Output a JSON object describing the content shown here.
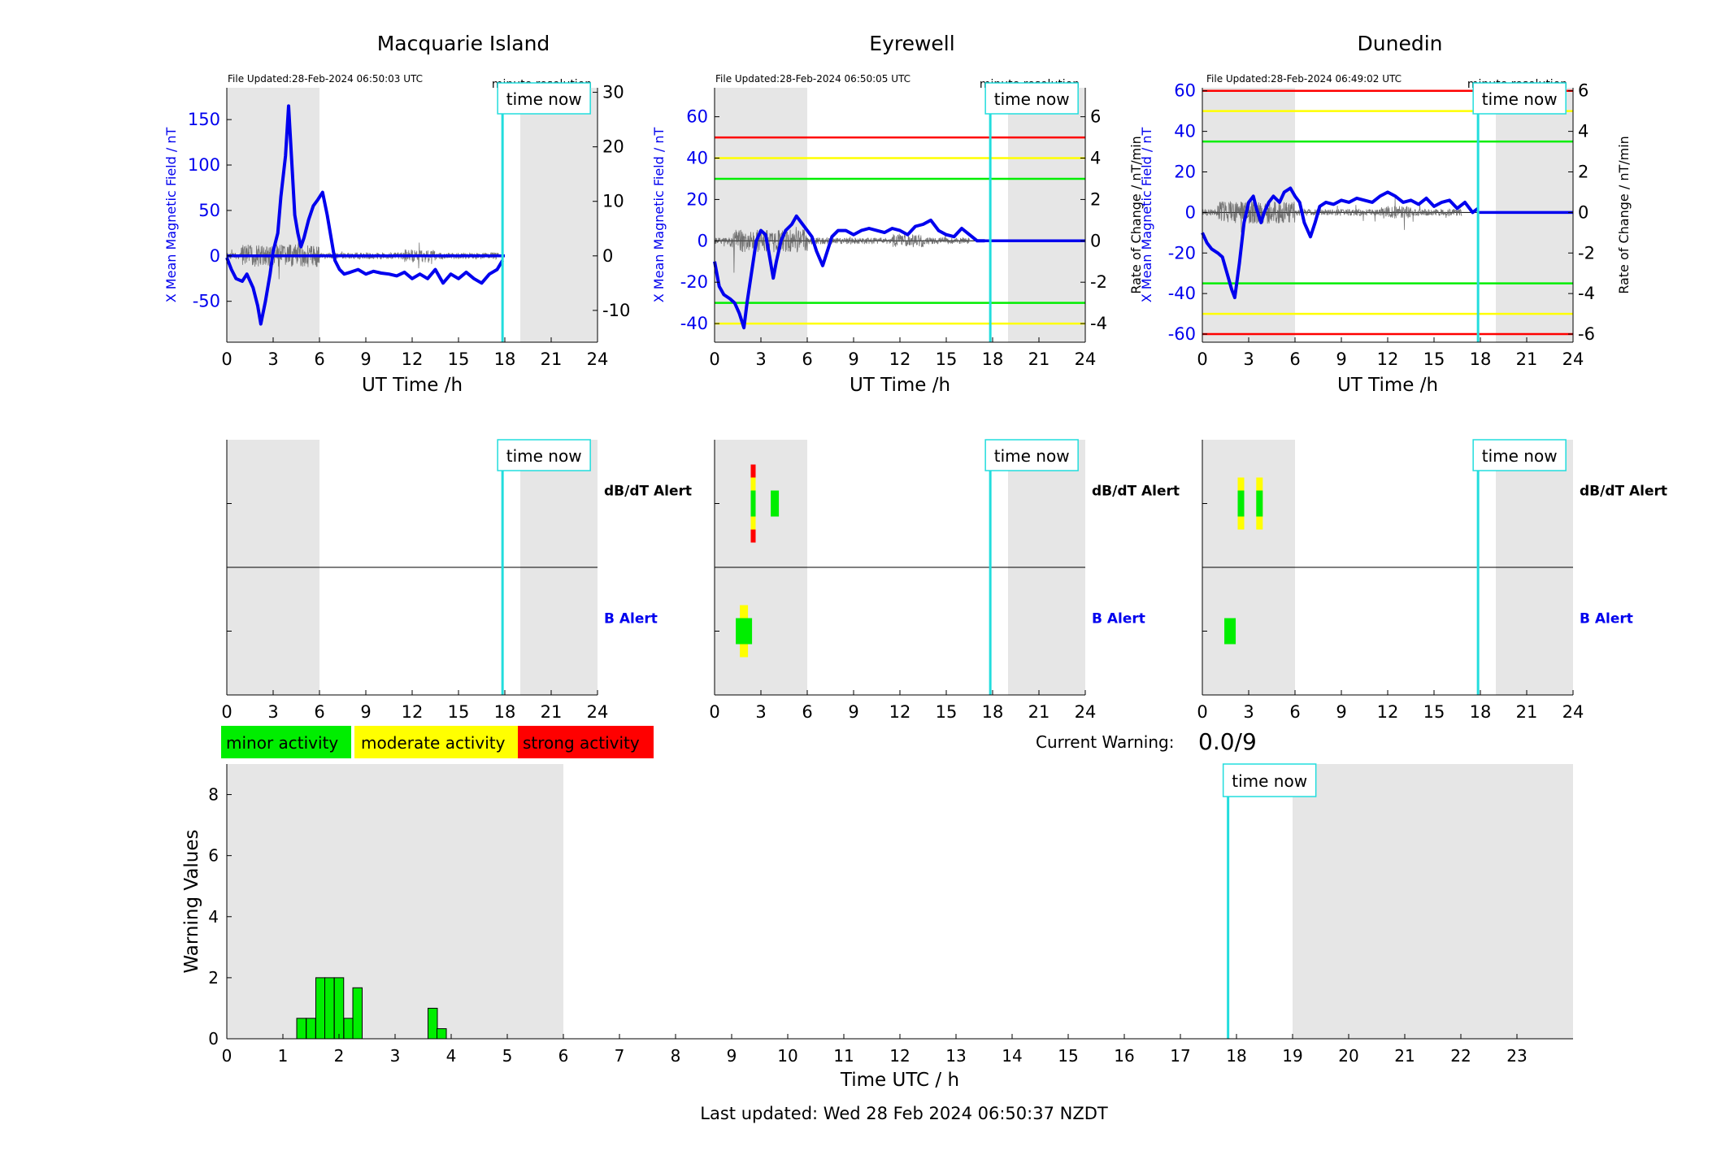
{
  "common": {
    "x_label": "UT Time /h",
    "x_ticks": [
      0,
      3,
      6,
      9,
      12,
      15,
      18,
      21,
      24
    ],
    "time_now_label": "time now",
    "minute_res_label": "minute resolution",
    "alert_dbdt_label": "dB/dT Alert",
    "alert_b_label": "B Alert",
    "now_hour": 17.85,
    "day_shading": [
      [
        0,
        6
      ],
      [
        19,
        24
      ]
    ],
    "colors": {
      "mean": "#0000ee",
      "rate": "#555555",
      "now": "#22dddd",
      "green": "#00ee00",
      "yellow": "#ffff00",
      "red": "#ff0000",
      "shade": "#e6e6e6"
    }
  },
  "legend": {
    "minor": "minor activity",
    "moderate": "moderate activity",
    "strong": "strong activity"
  },
  "current_warning": {
    "label": "Current Warning:",
    "value": "0.0/9"
  },
  "footer": {
    "last_updated": "Last updated: Wed 28 Feb 2024 06:50:37 NZDT"
  },
  "chart_data": [
    {
      "type": "line",
      "title": "Macquarie Island",
      "file_updated": "File Updated:28-Feb-2024 06:50:03 UTC",
      "ylabel": "X Mean Magnetic Field / nT",
      "y2label": "",
      "ylim": [
        -95,
        185
      ],
      "y_ticks": [
        -50,
        0,
        50,
        100,
        150
      ],
      "y2lim": [
        -15.83,
        30.83
      ],
      "y2_ticks": [
        -10,
        0,
        10,
        20,
        30
      ],
      "thresholds": [],
      "series": [
        {
          "x": [
            0,
            0.3,
            0.6,
            1,
            1.3,
            1.7,
            2,
            2.2,
            2.5,
            2.8,
            3,
            3.3,
            3.5,
            3.8,
            4,
            4.2,
            4.4,
            4.6,
            4.8,
            5,
            5.3,
            5.6,
            5.9,
            6.2,
            6.5,
            6.8,
            7,
            7.3,
            7.6,
            8,
            8.5,
            9,
            9.5,
            10,
            10.5,
            11,
            11.5,
            12,
            12.5,
            13,
            13.5,
            14,
            14.5,
            15,
            15.5,
            16,
            16.5,
            17,
            17.5,
            17.85
          ],
          "y": [
            -2,
            -15,
            -25,
            -28,
            -20,
            -35,
            -55,
            -75,
            -50,
            -20,
            5,
            25,
            65,
            110,
            165,
            105,
            45,
            25,
            10,
            20,
            40,
            55,
            62,
            70,
            45,
            15,
            -5,
            -15,
            -20,
            -18,
            -15,
            -20,
            -17,
            -19,
            -20,
            -22,
            -18,
            -25,
            -20,
            -25,
            -15,
            -30,
            -20,
            -25,
            -18,
            -25,
            -30,
            -20,
            -15,
            -5
          ]
        },
        {
          "x": [
            0,
            18
          ],
          "y": [
            0,
            0
          ]
        }
      ],
      "alerts": {
        "dbdt": [],
        "b": []
      }
    },
    {
      "type": "line",
      "title": "Eyrewell",
      "file_updated": "File Updated:28-Feb-2024 06:50:05 UTC",
      "ylabel": "X Mean Magnetic Field / nT",
      "y2label": "Rate of Change / nT/min",
      "ylim": [
        -49,
        74
      ],
      "y_ticks": [
        -40,
        -20,
        0,
        20,
        40,
        60
      ],
      "y2lim": [
        -4.9,
        7.4
      ],
      "y2_ticks": [
        -4,
        -2,
        0,
        2,
        4,
        6
      ],
      "thresholds": [
        {
          "y": 50,
          "color": "red"
        },
        {
          "y": 40,
          "color": "yellow"
        },
        {
          "y": 30,
          "color": "green"
        },
        {
          "y": -30,
          "color": "green"
        },
        {
          "y": -40,
          "color": "yellow"
        }
      ],
      "series": [
        {
          "x": [
            0,
            0.3,
            0.6,
            1,
            1.3,
            1.6,
            1.9,
            2.1,
            2.4,
            2.7,
            3,
            3.3,
            3.5,
            3.8,
            4,
            4.3,
            4.6,
            5,
            5.3,
            5.7,
            6,
            6.3,
            6.6,
            7,
            7.3,
            7.6,
            8,
            8.5,
            9,
            9.5,
            10,
            10.5,
            11,
            11.5,
            12,
            12.5,
            13,
            13.5,
            14,
            14.5,
            15,
            15.5,
            16,
            16.5,
            17,
            17.5
          ],
          "y": [
            -10,
            -22,
            -26,
            -28,
            -30,
            -35,
            -42,
            -30,
            -15,
            0,
            5,
            3,
            -5,
            -18,
            -10,
            0,
            5,
            8,
            12,
            8,
            5,
            2,
            -5,
            -12,
            -5,
            2,
            5,
            5,
            3,
            5,
            6,
            5,
            4,
            6,
            5,
            3,
            7,
            8,
            10,
            5,
            3,
            2,
            6,
            3,
            0,
            0
          ]
        },
        {
          "x": [
            17.5,
            24
          ],
          "y": [
            0,
            0
          ]
        }
      ],
      "alerts": {
        "dbdt": [
          {
            "x": 2.5,
            "from": "red",
            "mid": "yellow",
            "core": "green"
          },
          {
            "x": 3.9,
            "from": "green"
          }
        ],
        "b": [
          {
            "x": 1.9,
            "from": "green",
            "mid": "yellow"
          }
        ]
      }
    },
    {
      "type": "line",
      "title": "Dunedin",
      "file_updated": "File Updated:28-Feb-2024 06:49:02 UTC",
      "ylabel": "X Mean Magnetic Field / nT",
      "y2label": "Rate of Change / nT/min",
      "ylim": [
        -64,
        61.5
      ],
      "y_ticks": [
        -60,
        -40,
        -20,
        0,
        20,
        40,
        60
      ],
      "y2lim": [
        -6.4,
        6.15
      ],
      "y2_ticks": [
        -6,
        -4,
        -2,
        0,
        2,
        4,
        6
      ],
      "thresholds": [
        {
          "y": 60,
          "color": "red"
        },
        {
          "y": 50,
          "color": "yellow"
        },
        {
          "y": 35,
          "color": "green"
        },
        {
          "y": -35,
          "color": "green"
        },
        {
          "y": -50,
          "color": "yellow"
        },
        {
          "y": -60,
          "color": "red"
        }
      ],
      "series": [
        {
          "x": [
            0,
            0.3,
            0.6,
            1,
            1.3,
            1.6,
            1.9,
            2.1,
            2.4,
            2.7,
            3,
            3.3,
            3.5,
            3.8,
            4,
            4.3,
            4.6,
            5,
            5.3,
            5.7,
            6,
            6.3,
            6.6,
            7,
            7.3,
            7.6,
            8,
            8.5,
            9,
            9.5,
            10,
            10.5,
            11,
            11.5,
            12,
            12.5,
            13,
            13.5,
            14,
            14.5,
            15,
            15.5,
            16,
            16.5,
            17,
            17.5,
            17.85
          ],
          "y": [
            -10,
            -15,
            -18,
            -20,
            -22,
            -30,
            -38,
            -42,
            -25,
            -5,
            5,
            8,
            2,
            -5,
            0,
            5,
            8,
            5,
            10,
            12,
            8,
            5,
            -5,
            -12,
            -5,
            3,
            5,
            4,
            6,
            5,
            7,
            6,
            5,
            8,
            10,
            8,
            5,
            6,
            4,
            7,
            3,
            5,
            6,
            2,
            5,
            0,
            2
          ]
        },
        {
          "x": [
            17.85,
            24
          ],
          "y": [
            0,
            0
          ]
        }
      ],
      "alerts": {
        "dbdt": [
          {
            "x": 2.5,
            "from": "yellow",
            "core": "green"
          },
          {
            "x": 3.7,
            "from": "yellow",
            "core": "green"
          }
        ],
        "b": [
          {
            "x": 1.95,
            "from": "green"
          }
        ]
      }
    },
    {
      "type": "bar",
      "title": "",
      "xlabel": "Time UTC / h",
      "ylabel": "Warning Values",
      "xlim": [
        0,
        24
      ],
      "ylim": [
        0,
        9
      ],
      "x_ticks": [
        0,
        1,
        2,
        3,
        4,
        5,
        6,
        7,
        8,
        9,
        10,
        11,
        12,
        13,
        14,
        15,
        16,
        17,
        18,
        19,
        20,
        21,
        22,
        23
      ],
      "y_ticks": [
        0,
        2,
        4,
        6,
        8
      ],
      "bar_width": 0.1667,
      "x": [
        1.33,
        1.5,
        1.67,
        1.83,
        2.0,
        2.17,
        2.33,
        3.67,
        3.83
      ],
      "values": [
        0.67,
        0.67,
        2,
        2,
        2,
        0.67,
        1.67,
        1,
        0.33
      ]
    }
  ]
}
